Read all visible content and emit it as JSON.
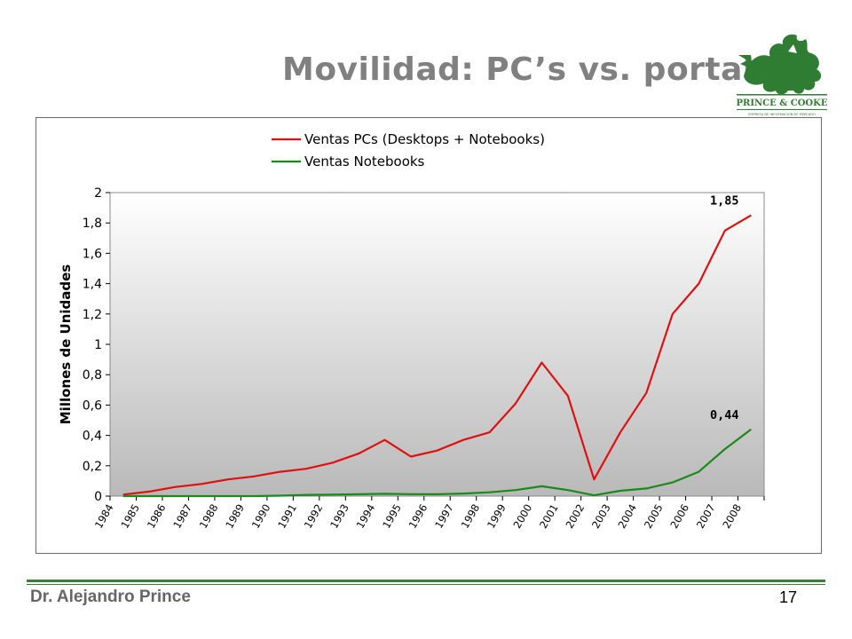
{
  "slide": {
    "title": "Movilidad: PC’s vs. portables",
    "author": "Dr. Alejandro Prince",
    "page_number": "17",
    "logo_text": "PRINCE & COOKE",
    "logo_subtext": "EMPRESA DE INFORMACION DE MERCADO"
  },
  "colors": {
    "pcs": "#e01010",
    "notebooks": "#1a8a1a",
    "logo_green": "#2e7d32",
    "rule_green": "#3a7f3a",
    "title_gray": "#808080"
  },
  "chart_data": {
    "type": "line",
    "title": "",
    "xlabel": "",
    "ylabel": "Millones de Unidades",
    "ylim": [
      0,
      2
    ],
    "yticks": [
      "0",
      "0,2",
      "0,4",
      "0,6",
      "0,8",
      "1",
      "1,2",
      "1,4",
      "1,6",
      "1,8",
      "2"
    ],
    "categories": [
      "1984",
      "1985",
      "1986",
      "1987",
      "1988",
      "1989",
      "1990",
      "1991",
      "1992",
      "1993",
      "1994",
      "1995",
      "1996",
      "1997",
      "1998",
      "1999",
      "2000",
      "2001",
      "2002",
      "2003",
      "2004",
      "2005",
      "2006",
      "2007",
      "2008"
    ],
    "legend_position": "top",
    "grid": false,
    "series": [
      {
        "name": "Ventas PCs (Desktops + Notebooks)",
        "color": "#e01010",
        "values": [
          0.01,
          0.03,
          0.06,
          0.08,
          0.11,
          0.13,
          0.16,
          0.18,
          0.22,
          0.28,
          0.37,
          0.26,
          0.3,
          0.37,
          0.42,
          0.61,
          0.88,
          0.66,
          0.11,
          0.42,
          0.68,
          1.2,
          1.4,
          1.75,
          1.85
        ]
      },
      {
        "name": "Ventas Notebooks",
        "color": "#1a8a1a",
        "values": [
          0.0,
          0.0,
          0.0,
          0.0,
          0.0,
          0.0,
          0.003,
          0.008,
          0.01,
          0.012,
          0.015,
          0.013,
          0.012,
          0.017,
          0.025,
          0.04,
          0.065,
          0.04,
          0.005,
          0.035,
          0.05,
          0.09,
          0.16,
          0.31,
          0.44
        ]
      }
    ],
    "annotations": [
      {
        "series": 0,
        "index": 24,
        "text": "1,85"
      },
      {
        "series": 1,
        "index": 24,
        "text": "0,44"
      }
    ]
  }
}
